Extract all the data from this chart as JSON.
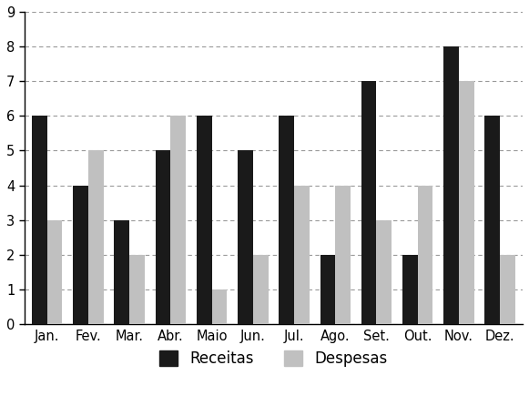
{
  "months": [
    "Jan.",
    "Fev.",
    "Mar.",
    "Abr.",
    "Maio",
    "Jun.",
    "Jul.",
    "Ago.",
    "Set.",
    "Out.",
    "Nov.",
    "Dez."
  ],
  "receitas": [
    6,
    4,
    3,
    5,
    6,
    5,
    6,
    2,
    7,
    2,
    8,
    6
  ],
  "despesas": [
    3,
    5,
    2,
    6,
    1,
    2,
    4,
    4,
    3,
    4,
    7,
    2
  ],
  "bar_color_receitas": "#1a1a1a",
  "bar_color_despesas": "#c0c0c0",
  "ylim": [
    0,
    9
  ],
  "yticks": [
    0,
    1,
    2,
    3,
    4,
    5,
    6,
    7,
    8,
    9
  ],
  "legend_receitas": "Receitas",
  "legend_despesas": "Despesas",
  "grid_color": "#999999",
  "grid_linestyle": "--",
  "background_color": "#ffffff",
  "bar_width": 0.37,
  "legend_fontsize": 12,
  "tick_fontsize": 10.5,
  "spine_color": "#000000"
}
